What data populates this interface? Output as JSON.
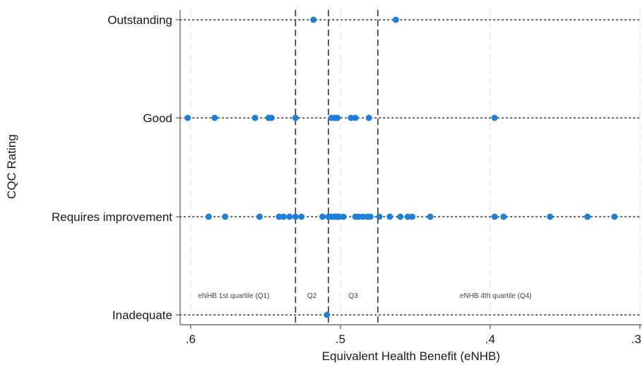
{
  "chart_data": {
    "type": "scatter",
    "title": "",
    "xlabel": "Equivalent Health Benefit (eNHB)",
    "ylabel": "CQC Rating",
    "xlim": [
      0.61,
      0.3
    ],
    "x_ticks": [
      {
        "value": 0.6,
        "label": ".6"
      },
      {
        "value": 0.5,
        "label": ".5"
      },
      {
        "value": 0.4,
        "label": ".4"
      },
      {
        "value": 0.3,
        "label": ".3"
      }
    ],
    "categories": [
      "Outstanding",
      "Good",
      "Requires improvement",
      "Inadequate"
    ],
    "quartile_cutoffs": [
      0.53,
      0.508,
      0.475
    ],
    "quartile_labels": [
      "eNHB 1st quartile (Q1)",
      "Q2",
      "Q3",
      "eNHB 4th quartile (Q4)"
    ],
    "grid": "dotted horizontal lines at each category; dashed vertical lines at quartile cut-offs",
    "marker_color": "#1f7fd8",
    "series": [
      {
        "category": "Outstanding",
        "x": [
          0.518,
          0.463
        ]
      },
      {
        "category": "Good",
        "x": [
          0.602,
          0.584,
          0.557,
          0.548,
          0.546,
          0.53,
          0.506,
          0.504,
          0.502,
          0.493,
          0.49,
          0.481,
          0.397
        ]
      },
      {
        "category": "Requires improvement",
        "x": [
          0.588,
          0.577,
          0.554,
          0.541,
          0.538,
          0.534,
          0.53,
          0.526,
          0.512,
          0.508,
          0.506,
          0.504,
          0.503,
          0.502,
          0.501,
          0.498,
          0.49,
          0.488,
          0.485,
          0.482,
          0.48,
          0.474,
          0.467,
          0.46,
          0.455,
          0.452,
          0.44,
          0.397,
          0.391,
          0.36,
          0.335,
          0.317
        ]
      },
      {
        "category": "Inadequate",
        "x": [
          0.509
        ]
      }
    ]
  }
}
